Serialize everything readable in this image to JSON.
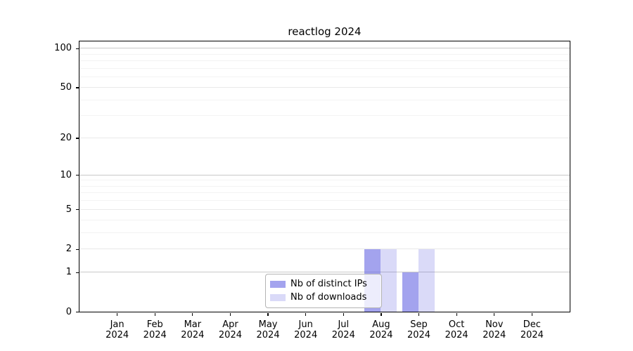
{
  "chart_data": {
    "type": "bar",
    "title": "reactlog 2024",
    "xlabel": "",
    "ylabel": "",
    "categories": [
      "Jan",
      "Feb",
      "Mar",
      "Apr",
      "May",
      "Jun",
      "Jul",
      "Aug",
      "Sep",
      "Oct",
      "Nov",
      "Dec"
    ],
    "x_year_label": "2024",
    "series": [
      {
        "name": "Nb of distinct IPs",
        "color": "rgba(102,102,226,0.6)",
        "values": [
          0,
          0,
          0,
          0,
          0,
          0,
          0,
          2,
          1,
          0,
          0,
          0
        ]
      },
      {
        "name": "Nb of downloads",
        "color": "rgba(102,102,226,0.24)",
        "values": [
          0,
          0,
          0,
          0,
          0,
          0,
          0,
          2,
          2,
          0,
          0,
          0
        ]
      }
    ],
    "y_axis": {
      "scale": "log1p",
      "ticks": [
        0,
        1,
        2,
        5,
        10,
        20,
        50,
        100
      ],
      "minor_gridlines": [
        3,
        4,
        6,
        7,
        8,
        9,
        30,
        40,
        60,
        70,
        80,
        90
      ],
      "ylim": [
        0,
        113
      ]
    },
    "legend_position": "inside-bottom-center",
    "grid": true,
    "style": {
      "accent_color": "#6666e2",
      "decade_grid_color": "#c8c8c8",
      "major_grid_color": "#e9e9e9",
      "minor_grid_color": "#f3f3f3",
      "axis_color": "#000000",
      "background": "#ffffff"
    }
  }
}
